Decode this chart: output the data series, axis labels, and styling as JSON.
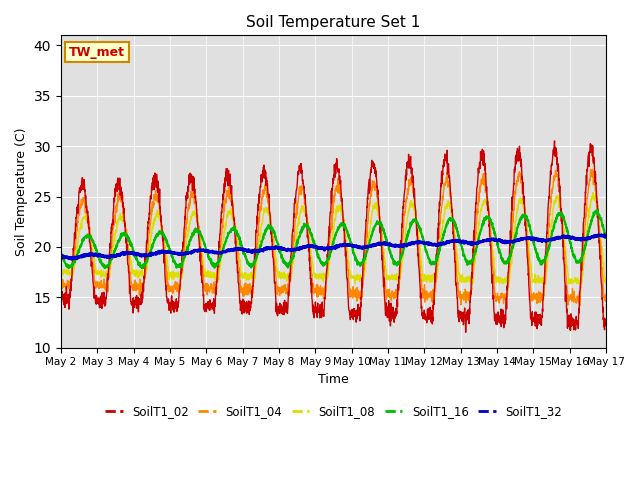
{
  "title": "Soil Temperature Set 1",
  "xlabel": "Time",
  "ylabel": "Soil Temperature (C)",
  "ylim": [
    10,
    41
  ],
  "yticks": [
    10,
    15,
    20,
    25,
    30,
    35,
    40
  ],
  "background_color": "#e0e0e0",
  "annotation_text": "TW_met",
  "annotation_bg": "#ffffcc",
  "annotation_border": "#cc8800",
  "series_colors": {
    "SoilT1_02": "#cc0000",
    "SoilT1_04": "#ff8800",
    "SoilT1_08": "#dddd00",
    "SoilT1_16": "#00bb00",
    "SoilT1_32": "#0000cc"
  },
  "x_tick_labels": [
    "May 2",
    "May 3",
    "May 4",
    "May 5",
    "May 6",
    "May 7",
    "May 8",
    "May 9",
    "May 10",
    "May 11",
    "May 12",
    "May 13",
    "May 14",
    "May 15",
    "May 16",
    "May 17"
  ],
  "num_days": 15,
  "points_per_day": 144
}
